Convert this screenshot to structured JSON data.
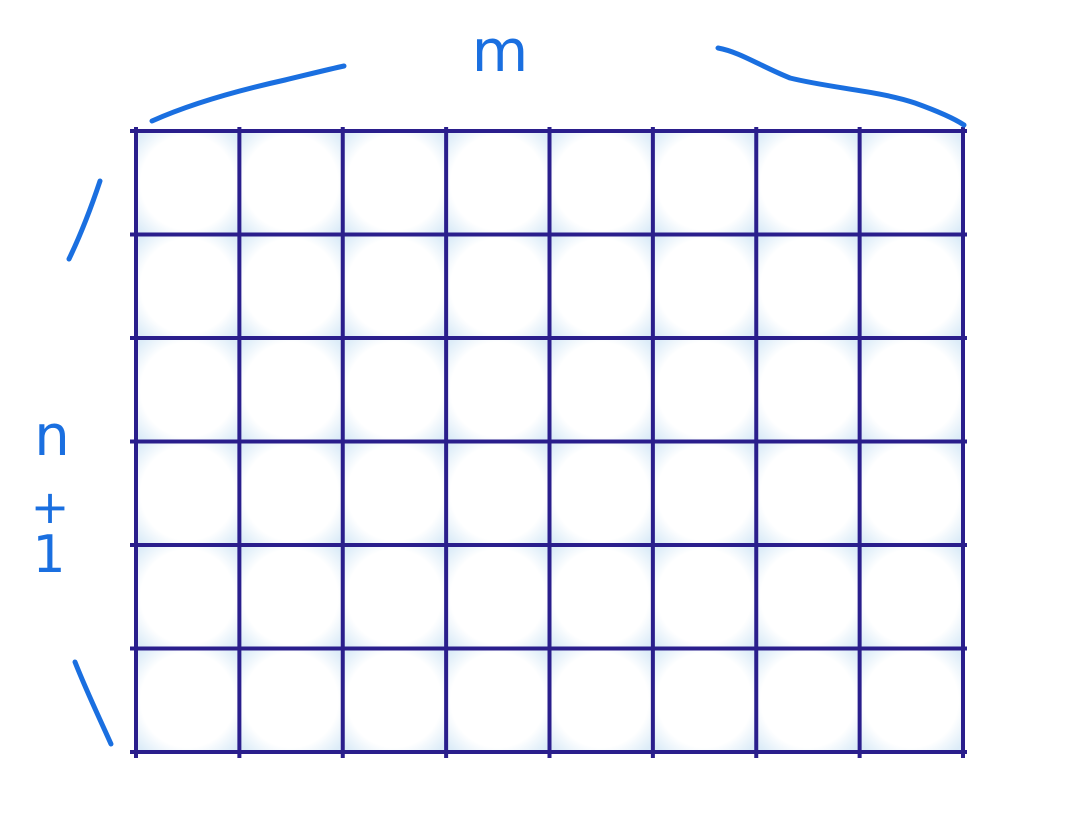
{
  "grid": {
    "columns": 8,
    "rows": 6,
    "line_color": "#2a1e8c",
    "cell_tint": "#dcecf8"
  },
  "annotations": {
    "ink_color": "#1a6fe0",
    "width_label": "m",
    "height_label": [
      "n",
      "+",
      "1"
    ]
  }
}
